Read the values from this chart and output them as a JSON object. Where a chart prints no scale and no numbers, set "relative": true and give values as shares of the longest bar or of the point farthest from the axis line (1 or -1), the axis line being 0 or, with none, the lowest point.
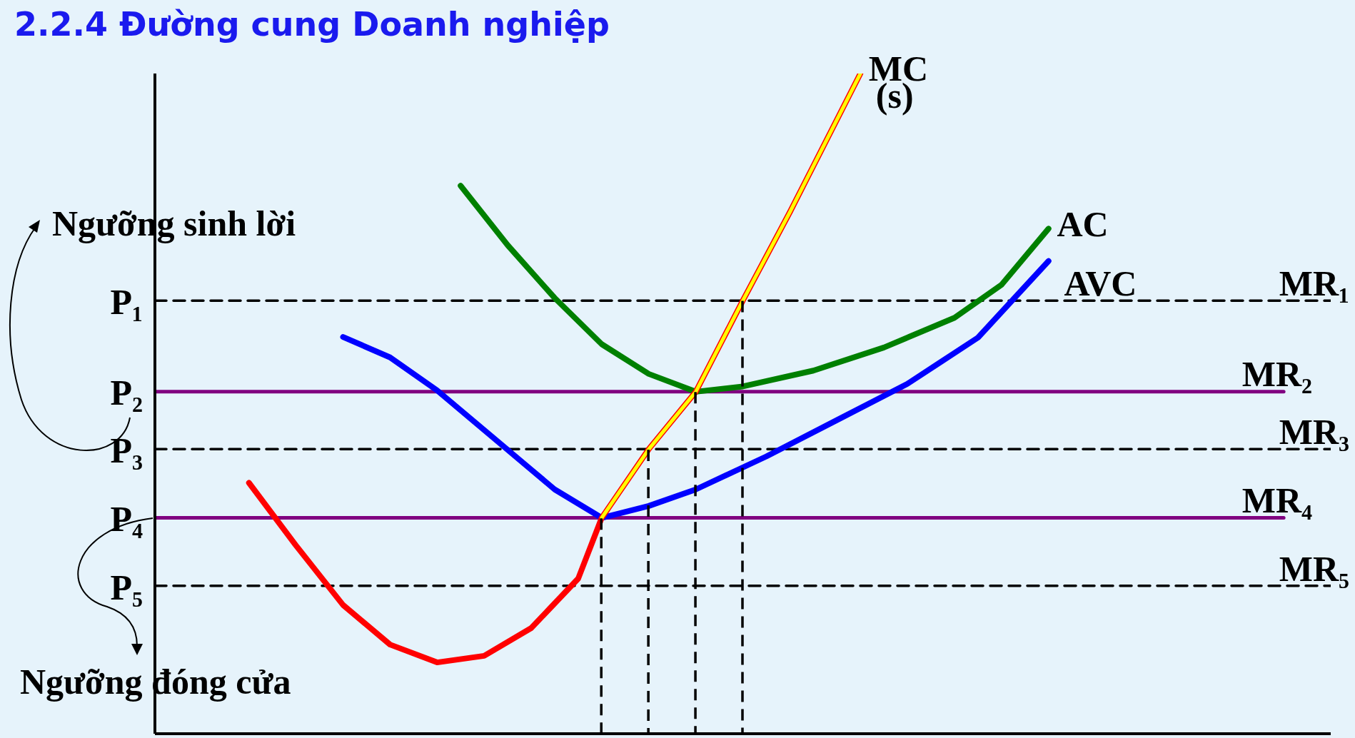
{
  "chart_data": {
    "type": "line",
    "title": "2.2.4 Đường cung Doanh nghiệp",
    "relative": true,
    "legend": false,
    "grid": false,
    "marker": "none",
    "categories": [
      null,
      null,
      null,
      null,
      null,
      null,
      null,
      null,
      null,
      null,
      null,
      null,
      null,
      null,
      null,
      null,
      null,
      null,
      null,
      null,
      null,
      null,
      null,
      null,
      null,
      null,
      null,
      null,
      null,
      null,
      null,
      null,
      null,
      null,
      null,
      null,
      null,
      null,
      null,
      null,
      null,
      null,
      null,
      null,
      null,
      null,
      null,
      null,
      null,
      null,
      null
    ],
    "annotations": [
      "P₁",
      "P₂",
      "P₃",
      "P₄",
      "P₅",
      "Ngưỡng sinh lời",
      "Ngưỡng đóng cửa"
    ],
    "series": [
      {
        "name": "MR₁",
        "color": "#000000",
        "line_style": "dashed",
        "values": [
          0.656,
          null,
          null,
          null,
          null,
          null,
          null,
          null,
          null,
          null,
          null,
          null,
          null,
          null,
          null,
          null,
          null,
          null,
          null,
          null,
          null,
          null,
          null,
          null,
          null,
          null,
          null,
          null,
          null,
          null,
          null,
          null,
          null,
          null,
          null,
          null,
          null,
          null,
          null,
          null,
          null,
          null,
          null,
          null,
          null,
          null,
          null,
          null,
          null,
          null,
          0.656
        ]
      },
      {
        "name": "MR₂",
        "color": "#800080",
        "line_style": "solid",
        "values": [
          0.518,
          null,
          null,
          null,
          null,
          null,
          null,
          null,
          null,
          null,
          null,
          null,
          null,
          null,
          null,
          null,
          null,
          null,
          null,
          null,
          null,
          null,
          null,
          null,
          null,
          null,
          null,
          null,
          null,
          null,
          null,
          null,
          null,
          null,
          null,
          null,
          null,
          null,
          null,
          null,
          null,
          null,
          null,
          null,
          null,
          null,
          null,
          null,
          0.518,
          null,
          null
        ]
      },
      {
        "name": "MR₃",
        "color": "#000000",
        "line_style": "dashed",
        "values": [
          0.431,
          null,
          null,
          null,
          null,
          null,
          null,
          null,
          null,
          null,
          null,
          null,
          null,
          null,
          null,
          null,
          null,
          null,
          null,
          null,
          null,
          null,
          null,
          null,
          null,
          null,
          null,
          null,
          null,
          null,
          null,
          null,
          null,
          null,
          null,
          null,
          null,
          null,
          null,
          null,
          null,
          null,
          null,
          null,
          null,
          null,
          null,
          null,
          null,
          null,
          0.431
        ]
      },
      {
        "name": "MR₄",
        "color": "#800080",
        "line_style": "solid",
        "values": [
          0.327,
          null,
          null,
          null,
          null,
          null,
          null,
          null,
          null,
          null,
          null,
          null,
          null,
          null,
          null,
          null,
          null,
          null,
          null,
          null,
          null,
          null,
          null,
          null,
          null,
          null,
          null,
          null,
          null,
          null,
          null,
          null,
          null,
          null,
          null,
          null,
          null,
          null,
          null,
          null,
          null,
          null,
          null,
          null,
          null,
          null,
          null,
          null,
          0.327,
          null,
          null
        ]
      },
      {
        "name": "MR₅",
        "color": "#000000",
        "line_style": "dashed",
        "values": [
          0.224,
          null,
          null,
          null,
          null,
          null,
          null,
          null,
          null,
          null,
          null,
          null,
          null,
          null,
          null,
          null,
          null,
          null,
          null,
          null,
          null,
          null,
          null,
          null,
          null,
          null,
          null,
          null,
          null,
          null,
          null,
          null,
          null,
          null,
          null,
          null,
          null,
          null,
          null,
          null,
          null,
          null,
          null,
          null,
          null,
          null,
          null,
          null,
          null,
          null,
          0.224
        ]
      },
      {
        "name": "AC",
        "color": "#008000",
        "line_style": "solid",
        "values": [
          null,
          null,
          null,
          null,
          null,
          null,
          null,
          null,
          null,
          null,
          null,
          null,
          null,
          0.83,
          null,
          0.74,
          null,
          0.66,
          null,
          0.59,
          null,
          0.545,
          null,
          0.518,
          null,
          0.526,
          null,
          null,
          0.55,
          null,
          null,
          0.585,
          null,
          null,
          0.63,
          null,
          0.68,
          null,
          0.765,
          null,
          null,
          null,
          null,
          null,
          null,
          null,
          null,
          null,
          null,
          null,
          null
        ]
      },
      {
        "name": "AVC",
        "color": "#0000ff",
        "line_style": "solid",
        "values": [
          null,
          null,
          null,
          null,
          null,
          null,
          null,
          null,
          0.601,
          null,
          0.57,
          null,
          0.52,
          null,
          0.46,
          null,
          0.4,
          0.37,
          null,
          0.327,
          null,
          0.345,
          null,
          0.37,
          null,
          null,
          0.42,
          null,
          null,
          0.475,
          null,
          null,
          0.53,
          null,
          null,
          0.6,
          null,
          null,
          0.716,
          null,
          null,
          null,
          null,
          null,
          null,
          null,
          null,
          null,
          null,
          null,
          null
        ]
      },
      {
        "name": "MC",
        "color": "#ff0000",
        "line_style": "solid",
        "values": [
          null,
          null,
          null,
          null,
          0.38,
          null,
          0.285,
          null,
          0.195,
          null,
          0.135,
          null,
          0.108,
          null,
          0.118,
          null,
          0.16,
          null,
          0.235,
          0.327,
          null,
          0.431,
          null,
          0.518,
          null,
          0.656,
          null,
          0.79,
          null,
          null,
          1,
          null,
          null,
          null,
          null,
          null,
          null,
          null,
          null,
          null,
          null,
          null,
          null,
          null,
          null,
          null,
          null,
          null,
          null,
          null,
          null
        ]
      },
      {
        "name": "(s)",
        "color": "#ffff00",
        "line_style": "solid",
        "values": [
          null,
          null,
          null,
          null,
          null,
          null,
          null,
          null,
          null,
          null,
          null,
          null,
          null,
          null,
          null,
          null,
          null,
          null,
          null,
          0.327,
          null,
          0.431,
          null,
          0.518,
          null,
          0.656,
          null,
          0.79,
          null,
          null,
          1,
          null,
          null,
          null,
          null,
          null,
          null,
          null,
          null,
          null,
          null,
          null,
          null,
          null,
          null,
          null,
          null,
          null,
          null,
          null,
          null
        ]
      }
    ]
  }
}
